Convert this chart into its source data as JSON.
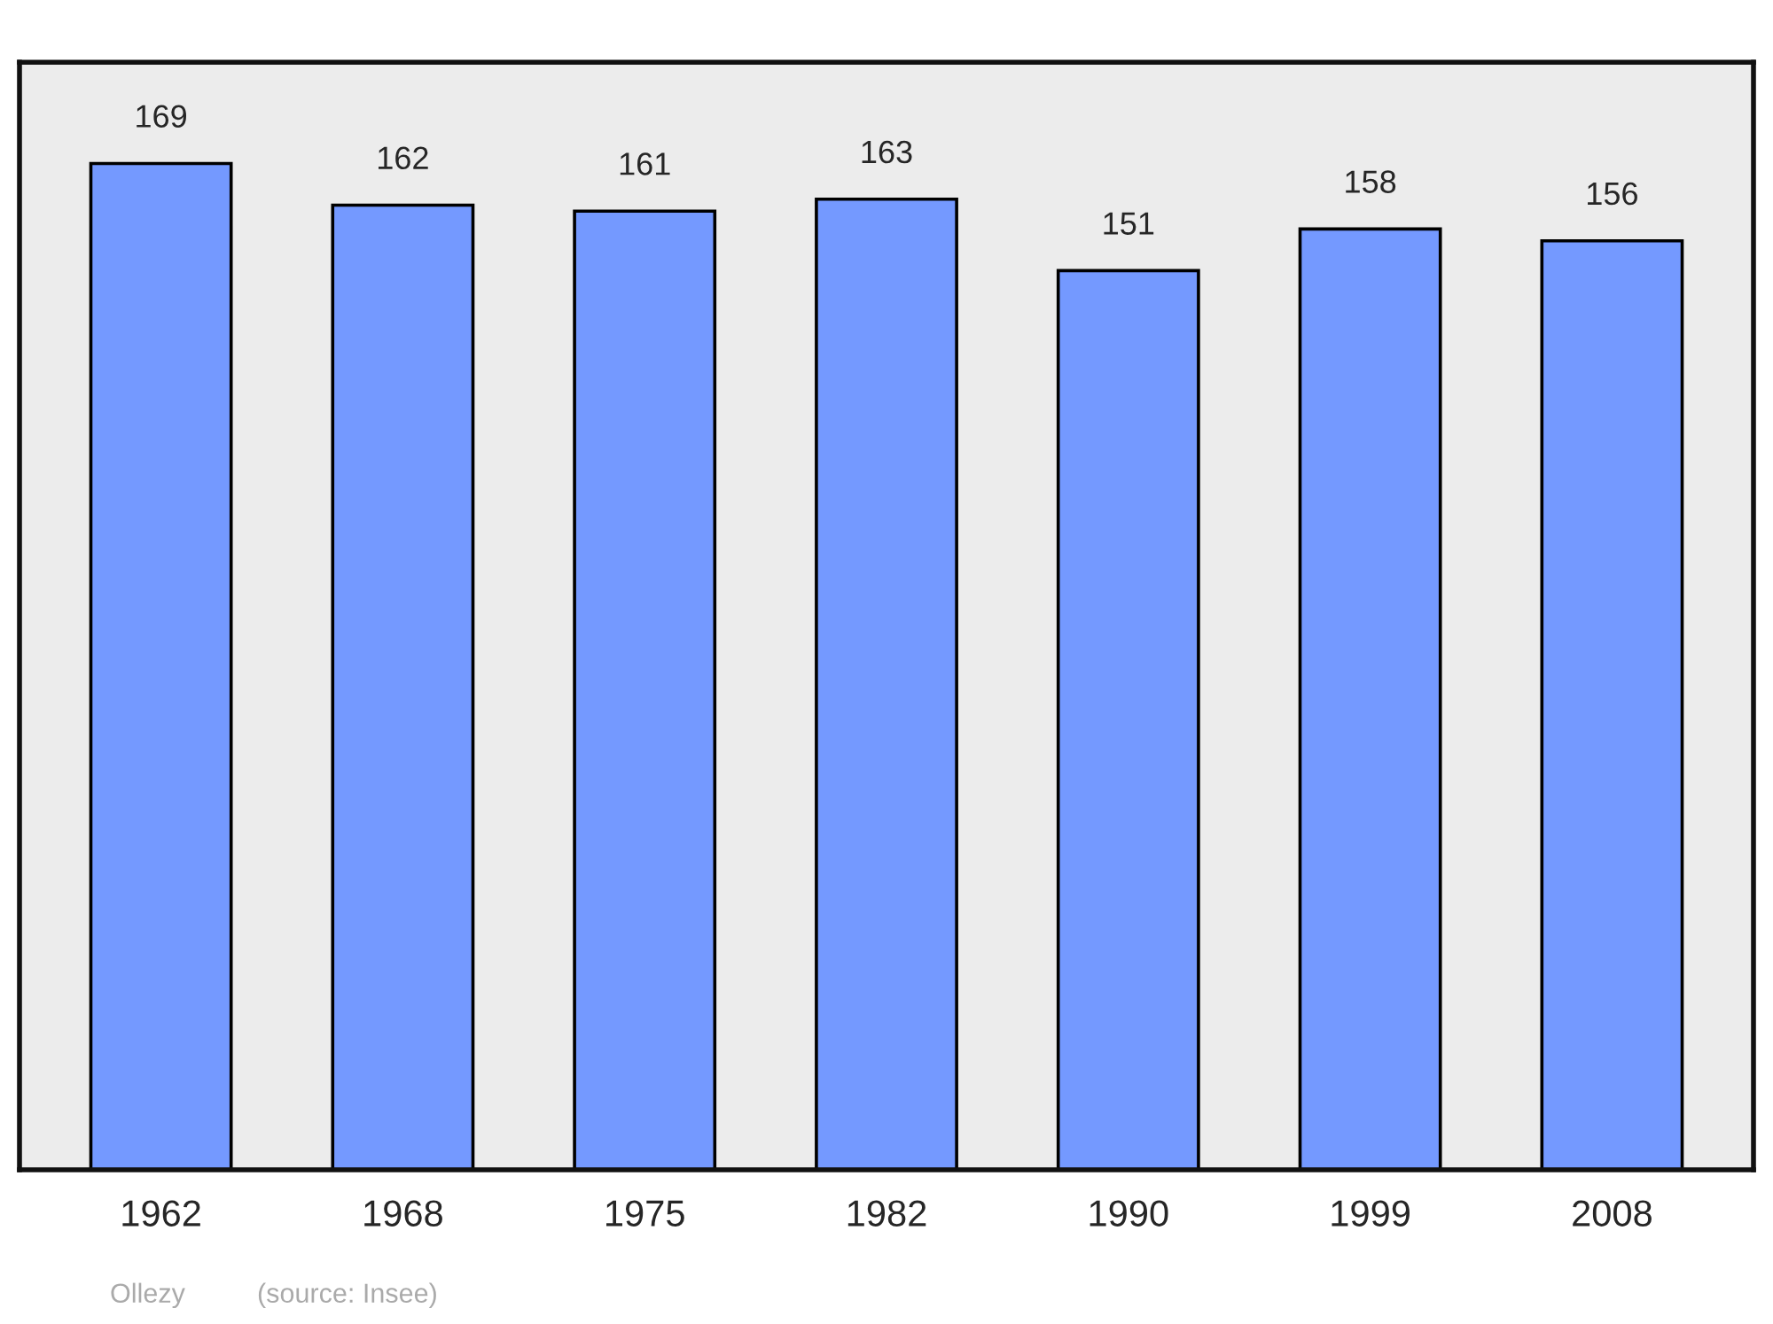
{
  "chart_data": {
    "type": "bar",
    "categories": [
      "1962",
      "1968",
      "1975",
      "1982",
      "1990",
      "1999",
      "2008"
    ],
    "values": [
      169,
      162,
      161,
      163,
      151,
      158,
      156
    ],
    "color": "#7499ff",
    "ylim": [
      0,
      186
    ],
    "data_labels": true,
    "grid": false,
    "legend": false,
    "annotations": [
      "Ollezy",
      "(source: Insee)"
    ]
  }
}
